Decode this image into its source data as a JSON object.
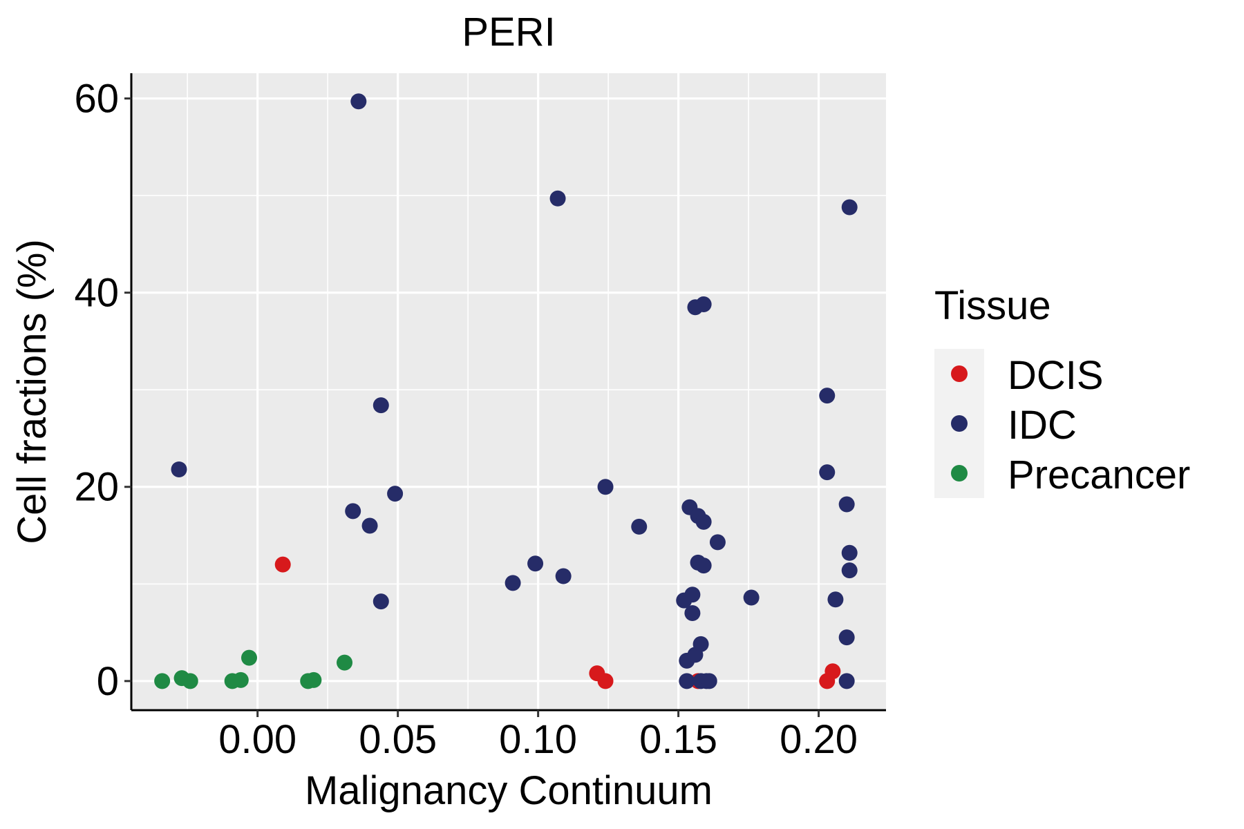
{
  "chart_data": {
    "type": "scatter",
    "title": "PERI",
    "xlabel": "Malignancy Continuum",
    "ylabel": "Cell fractions (%)",
    "xlim": [
      -0.045,
      0.224
    ],
    "ylim": [
      -3,
      62.6
    ],
    "x_ticks": [
      0.0,
      0.05,
      0.1,
      0.15,
      0.2
    ],
    "x_tick_labels": [
      "0.00",
      "0.05",
      "0.10",
      "0.15",
      "0.20"
    ],
    "y_ticks": [
      0,
      20,
      40,
      60
    ],
    "y_tick_labels": [
      "0",
      "20",
      "40",
      "60"
    ],
    "x_minor_grid": [
      -0.025,
      0.025,
      0.075,
      0.125,
      0.175
    ],
    "y_minor_grid": [
      10,
      30,
      50
    ],
    "grid": true,
    "panel_background": "#ebebeb",
    "legend": {
      "title": "Tissue",
      "position": "right",
      "entries": [
        {
          "label": "DCIS",
          "color": "#d7191c"
        },
        {
          "label": "IDC",
          "color": "#262c68"
        },
        {
          "label": "Precancer",
          "color": "#1f8a44"
        }
      ]
    },
    "series": [
      {
        "name": "DCIS",
        "color": "#d7191c",
        "points": [
          [
            0.009,
            12.0
          ],
          [
            0.121,
            0.8
          ],
          [
            0.124,
            0.0
          ],
          [
            0.157,
            0.0
          ],
          [
            0.203,
            0.0
          ],
          [
            0.205,
            1.0
          ]
        ]
      },
      {
        "name": "IDC",
        "color": "#262c68",
        "points": [
          [
            -0.028,
            21.8
          ],
          [
            0.036,
            59.7
          ],
          [
            0.034,
            17.5
          ],
          [
            0.04,
            16.0
          ],
          [
            0.044,
            28.4
          ],
          [
            0.044,
            8.2
          ],
          [
            0.049,
            19.3
          ],
          [
            0.091,
            10.1
          ],
          [
            0.099,
            12.1
          ],
          [
            0.107,
            49.7
          ],
          [
            0.109,
            10.8
          ],
          [
            0.124,
            20.0
          ],
          [
            0.136,
            15.9
          ],
          [
            0.152,
            8.3
          ],
          [
            0.153,
            2.1
          ],
          [
            0.153,
            0.0
          ],
          [
            0.154,
            17.9
          ],
          [
            0.155,
            8.9
          ],
          [
            0.155,
            7.0
          ],
          [
            0.156,
            2.7
          ],
          [
            0.156,
            38.5
          ],
          [
            0.157,
            17.0
          ],
          [
            0.157,
            12.2
          ],
          [
            0.158,
            3.8
          ],
          [
            0.158,
            0.0
          ],
          [
            0.159,
            38.8
          ],
          [
            0.159,
            16.4
          ],
          [
            0.159,
            11.9
          ],
          [
            0.16,
            0.0
          ],
          [
            0.161,
            0.0
          ],
          [
            0.164,
            14.3
          ],
          [
            0.176,
            8.6
          ],
          [
            0.203,
            29.4
          ],
          [
            0.203,
            21.5
          ],
          [
            0.206,
            8.4
          ],
          [
            0.21,
            18.2
          ],
          [
            0.21,
            4.5
          ],
          [
            0.21,
            0.0
          ],
          [
            0.211,
            48.8
          ],
          [
            0.211,
            13.2
          ],
          [
            0.211,
            11.4
          ]
        ]
      },
      {
        "name": "Precancer",
        "color": "#1f8a44",
        "points": [
          [
            -0.034,
            0.0
          ],
          [
            -0.027,
            0.3
          ],
          [
            -0.024,
            0.0
          ],
          [
            -0.009,
            0.0
          ],
          [
            -0.006,
            0.1
          ],
          [
            -0.003,
            2.4
          ],
          [
            0.018,
            0.0
          ],
          [
            0.02,
            0.1
          ],
          [
            0.031,
            1.9
          ]
        ]
      }
    ]
  }
}
